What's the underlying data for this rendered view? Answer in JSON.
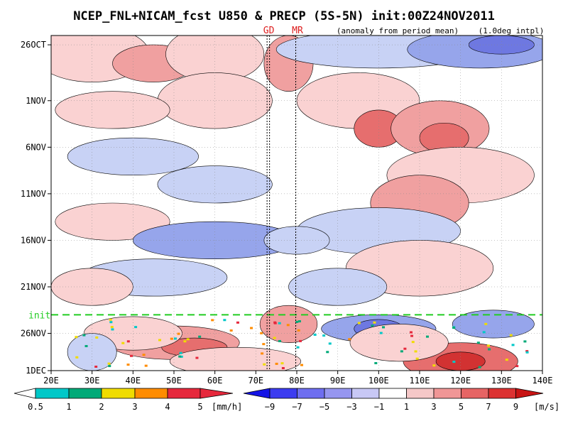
{
  "chart_data": {
    "type": "heatmap",
    "title": "NCEP_FNL+NICAM_fcst U850 & PRECP (5S-5N) init:00Z24NOV2011",
    "subtitle": "(anomaly from period mean)",
    "interpolation_note": "(1.0deg intpl)",
    "x_axis": {
      "range": [
        20,
        140
      ],
      "ticks": [
        {
          "v": 20,
          "label": "20E"
        },
        {
          "v": 30,
          "label": "30E"
        },
        {
          "v": 40,
          "label": "40E"
        },
        {
          "v": 50,
          "label": "50E"
        },
        {
          "v": 60,
          "label": "60E"
        },
        {
          "v": 70,
          "label": "70E"
        },
        {
          "v": 80,
          "label": "80E"
        },
        {
          "v": 90,
          "label": "90E"
        },
        {
          "v": 100,
          "label": "100E"
        },
        {
          "v": 110,
          "label": "110E"
        },
        {
          "v": 120,
          "label": "120E"
        },
        {
          "v": 130,
          "label": "130E"
        },
        {
          "v": 140,
          "label": "140E"
        }
      ]
    },
    "y_axis": {
      "range_days": [
        0,
        36
      ],
      "ticks": [
        {
          "v": 1,
          "label": "26OCT"
        },
        {
          "v": 7,
          "label": "1NOV"
        },
        {
          "v": 12,
          "label": "6NOV"
        },
        {
          "v": 17,
          "label": "11NOV"
        },
        {
          "v": 22,
          "label": "16NOV"
        },
        {
          "v": 27,
          "label": "21NOV"
        },
        {
          "v": 32,
          "label": "26NOV"
        },
        {
          "v": 37,
          "label": "1DEC"
        }
      ]
    },
    "init_line": {
      "label": "init",
      "v": 30,
      "color": "#22cc22"
    },
    "markers": [
      {
        "label": "GD",
        "lon": 73
      },
      {
        "label": "MR",
        "lon": 80
      }
    ],
    "colorbars": [
      {
        "name": "precip",
        "unit": "[mm/h]",
        "labels": [
          "0.5",
          "1",
          "2",
          "3",
          "4",
          "5"
        ],
        "colors": [
          "#ffffff",
          "#00c8c8",
          "#00aa78",
          "#f0dc00",
          "#ff8c00",
          "#e6283c"
        ]
      },
      {
        "name": "u850",
        "unit": "[m/s]",
        "labels": [
          "−9",
          "−7",
          "−5",
          "−3",
          "−1",
          "1",
          "3",
          "5",
          "7",
          "9"
        ],
        "colors": [
          "#1414e6",
          "#3c3cf0",
          "#6e6ef0",
          "#9696f0",
          "#c8c8f5",
          "#ffffff",
          "#f5c8c8",
          "#f09696",
          "#e66464",
          "#dc3232",
          "#c81414"
        ]
      }
    ],
    "field_colors": {
      "blue1": "#c8d2f5",
      "blue2": "#96a5eb",
      "blue3": "#6e78e1",
      "red1": "#fad2d2",
      "red2": "#f0a0a0",
      "red3": "#e66e6e",
      "red4": "#d23232"
    }
  }
}
